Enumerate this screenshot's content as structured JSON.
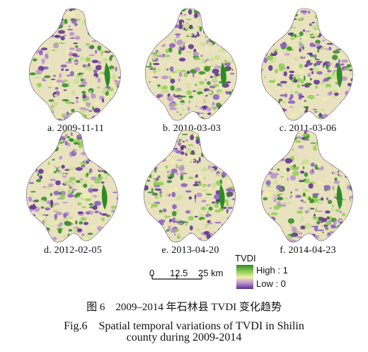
{
  "figure": {
    "panels": [
      {
        "label": "a. 2009-11-11"
      },
      {
        "label": "b. 2010-03-03"
      },
      {
        "label": "c. 2011-03-06"
      },
      {
        "label": "d. 2012-02-05"
      },
      {
        "label": "e. 2013-04-20"
      },
      {
        "label": "f. 2014-04-23"
      }
    ],
    "legend": {
      "title": "TVDI",
      "high_label": "High : 1",
      "low_label": "Low : 0",
      "colors": {
        "high": "#2e8b24",
        "mid": "#f1ecb0",
        "low": "#5a2d91"
      }
    },
    "scale_bar": {
      "ticks": [
        "0",
        "12.5",
        "25 km"
      ]
    },
    "caption": {
      "chinese": "图 6　2009–2014 年石林县 TVDI 变化趋势",
      "english_line1": "Fig.6　Spatial temporal variations of TVDI in Shilin",
      "english_line2": "county during 2009-2014"
    }
  }
}
